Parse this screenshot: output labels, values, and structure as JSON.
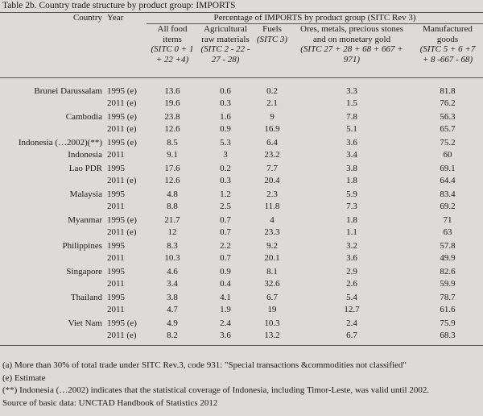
{
  "title": "Table 2b. Country trade structure by product group: IMPORTS",
  "header": {
    "country_label": "Country",
    "year_label": "Year",
    "group_label": "Percentage of IMPORTS by product group (SITC Rev 3)",
    "columns": [
      {
        "name_lines": [
          "All food",
          "items"
        ],
        "sitc_lines": [
          "(SITC 0 + 1",
          "+ 22 +4)"
        ]
      },
      {
        "name_lines": [
          "Agricultural",
          "raw materials"
        ],
        "sitc_lines": [
          "(SITC 2 - 22 -",
          "27 - 28)"
        ]
      },
      {
        "name_lines": [
          "Fuels"
        ],
        "sitc_lines": [
          "(SITC 3)"
        ]
      },
      {
        "name_lines": [
          "Ores, metals, precious stones",
          "and  on monetary gold"
        ],
        "sitc_lines": [
          "(SITC 27 + 28 + 68 + 667 +",
          "971)"
        ]
      },
      {
        "name_lines": [
          "Manufactured",
          "goods"
        ],
        "sitc_lines": [
          "(SITC 5 + 6 +7",
          "+ 8 -667 - 68)"
        ]
      }
    ]
  },
  "rows": [
    {
      "country": "Brunei Darussalam",
      "r1": {
        "year": "1995 (e)",
        "v": [
          "13.6",
          "0.6",
          "0.2",
          "3.3",
          "81.8"
        ]
      },
      "r2": {
        "year": "2011 (e)",
        "v": [
          "19.6",
          "0.3",
          "2.1",
          "1.5",
          "76.2"
        ]
      }
    },
    {
      "country": "Cambodia",
      "r1": {
        "year": "1995 (e)",
        "v": [
          "23.8",
          "1.6",
          "9",
          "7.8",
          "56.3"
        ]
      },
      "r2": {
        "year": "2011 (e)",
        "v": [
          "12.6",
          "0.9",
          "16.9",
          "5.1",
          "65.7"
        ]
      }
    },
    {
      "country": "Indonesia (…2002)(**)",
      "r1": {
        "year": "1995 (e)",
        "v": [
          "8.5",
          "5.3",
          "6.4",
          "3.6",
          "75.2"
        ]
      },
      "country2": "Indonesia",
      "r2": {
        "year": "2011",
        "v": [
          "9.1",
          "3",
          "23.2",
          "3.4",
          "60"
        ]
      }
    },
    {
      "country": "Lao PDR",
      "r1": {
        "year": "1995",
        "v": [
          "17.6",
          "0.2",
          "7.7",
          "3.8",
          "69.1"
        ]
      },
      "r2": {
        "year": "2011 (e)",
        "v": [
          "12.6",
          "0.3",
          "20.4",
          "1.8",
          "64.4"
        ]
      }
    },
    {
      "country": "Malaysia",
      "r1": {
        "year": "1995",
        "v": [
          "4.8",
          "1.2",
          "2.3",
          "5.9",
          "83.4"
        ]
      },
      "r2": {
        "year": "2011",
        "v": [
          "8.8",
          "2.5",
          "11.8",
          "7.3",
          "69.2"
        ]
      }
    },
    {
      "country": "Myanmar",
      "r1": {
        "year": "1995 (e)",
        "v": [
          "21.7",
          "0.7",
          "4",
          "1.8",
          "71"
        ]
      },
      "r2": {
        "year": "2011 (e)",
        "v": [
          "12",
          "0.7",
          "23.3",
          "1.1",
          "63"
        ]
      }
    },
    {
      "country": "Philippines",
      "r1": {
        "year": "1995",
        "v": [
          "8.3",
          "2.2",
          "9.2",
          "3.2",
          "57.8"
        ]
      },
      "r2": {
        "year": "2011",
        "v": [
          "10.3",
          "0.7",
          "20.1",
          "3.6",
          "49.9"
        ]
      }
    },
    {
      "country": "Singapore",
      "r1": {
        "year": "1995",
        "v": [
          "4.6",
          "0.9",
          "8.1",
          "2.9",
          "82.6"
        ]
      },
      "r2": {
        "year": "2011",
        "v": [
          "3.4",
          "0.4",
          "32.6",
          "2.6",
          "59.9"
        ]
      }
    },
    {
      "country": "Thailand",
      "r1": {
        "year": "1995",
        "v": [
          "3.8",
          "4.1",
          "6.7",
          "5.4",
          "78.7"
        ]
      },
      "r2": {
        "year": "2011",
        "v": [
          "4.7",
          "1.9",
          "19",
          "12.7",
          "61.6"
        ]
      }
    },
    {
      "country": "Viet Nam",
      "r1": {
        "year": "1995 (e)",
        "v": [
          "4.9",
          "2.4",
          "10.3",
          "2.4",
          "75.9"
        ]
      },
      "r2": {
        "year": "2011 (e)",
        "v": [
          "8.2",
          "3.6",
          "13.2",
          "6.7",
          "68.3"
        ]
      }
    }
  ],
  "notes": [
    "(a) More than 30% of total trade under SITC Rev.3, code 931: \"Special transactions &commodities not classified\"",
    "(e) Estimate",
    "(**) Indonesia (…2002) indicates that the statistical coverage of Indonesia, including Timor-Leste, was valid until 2002.",
    "Source of basic data: UNCTAD Handbook of Statistics 2012"
  ]
}
